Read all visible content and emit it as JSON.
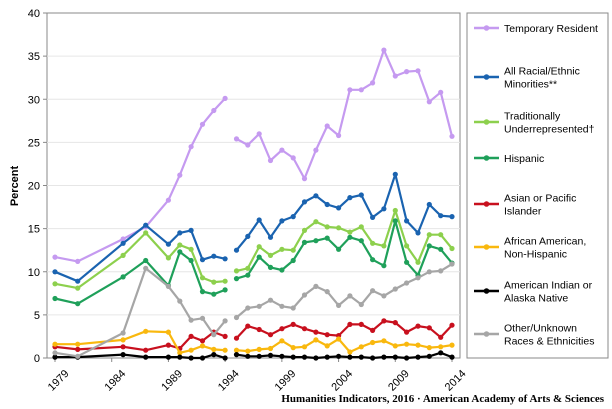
{
  "chart_data": {
    "type": "line",
    "ylabel": "Percent",
    "ylim": [
      0,
      40
    ],
    "xlim": [
      1979,
      2014
    ],
    "yticks": [
      "0",
      "5",
      "10",
      "15",
      "20",
      "25",
      "30",
      "35",
      "40"
    ],
    "xticks": [
      "1979",
      "1984",
      "1989",
      "1994",
      "1999",
      "2004",
      "2009",
      "2014"
    ],
    "source": "Humanities Indicators, 2016 · American Academy of Arts & Sciences",
    "legend_position": "right",
    "series": [
      {
        "name": "Temporary Resident",
        "color": "#c59af0",
        "segments": [
          [
            [
              1979,
              11.7
            ],
            [
              1981,
              11.2
            ],
            [
              1985,
              13.8
            ],
            [
              1987,
              15.2
            ],
            [
              1989,
              18.3
            ],
            [
              1990,
              21.2
            ],
            [
              1991,
              24.5
            ],
            [
              1992,
              27.1
            ],
            [
              1993,
              28.7
            ],
            [
              1994,
              30.1
            ]
          ],
          [
            [
              1995,
              25.4
            ],
            [
              1996,
              24.7
            ],
            [
              1997,
              26.0
            ],
            [
              1998,
              22.9
            ],
            [
              1999,
              24.1
            ],
            [
              2000,
              23.2
            ],
            [
              2001,
              20.8
            ],
            [
              2002,
              24.1
            ],
            [
              2003,
              26.9
            ],
            [
              2004,
              25.8
            ],
            [
              2005,
              31.1
            ],
            [
              2006,
              31.1
            ],
            [
              2007,
              31.9
            ],
            [
              2008,
              35.7
            ],
            [
              2009,
              32.7
            ],
            [
              2010,
              33.2
            ],
            [
              2011,
              33.3
            ],
            [
              2012,
              29.7
            ],
            [
              2013,
              30.8
            ],
            [
              2014,
              25.7
            ]
          ]
        ]
      },
      {
        "name": "All Racial/Ethnic Minorities**",
        "color": "#1a63b0",
        "segments": [
          [
            [
              1979,
              10.0
            ],
            [
              1981,
              8.9
            ],
            [
              1985,
              13.3
            ],
            [
              1987,
              15.4
            ],
            [
              1989,
              13.2
            ],
            [
              1990,
              14.5
            ],
            [
              1991,
              14.8
            ],
            [
              1992,
              11.4
            ],
            [
              1993,
              11.8
            ],
            [
              1994,
              11.5
            ]
          ],
          [
            [
              1995,
              12.5
            ],
            [
              1996,
              14.1
            ],
            [
              1997,
              16.0
            ],
            [
              1998,
              14.0
            ],
            [
              1999,
              15.9
            ],
            [
              2000,
              16.4
            ],
            [
              2001,
              18.1
            ],
            [
              2002,
              18.8
            ],
            [
              2003,
              17.8
            ],
            [
              2004,
              17.4
            ],
            [
              2005,
              18.6
            ],
            [
              2006,
              18.9
            ],
            [
              2007,
              16.3
            ],
            [
              2008,
              17.3
            ],
            [
              2009,
              21.3
            ],
            [
              2010,
              15.9
            ],
            [
              2011,
              14.5
            ],
            [
              2012,
              17.8
            ],
            [
              2013,
              16.5
            ],
            [
              2014,
              16.4
            ]
          ]
        ]
      },
      {
        "name": "Traditionally Underrepresented†",
        "color": "#8dd04d",
        "segments": [
          [
            [
              1979,
              8.6
            ],
            [
              1981,
              8.1
            ],
            [
              1985,
              11.9
            ],
            [
              1987,
              14.5
            ],
            [
              1989,
              11.6
            ],
            [
              1990,
              13.1
            ],
            [
              1991,
              12.6
            ],
            [
              1992,
              9.3
            ],
            [
              1993,
              8.8
            ],
            [
              1994,
              8.9
            ]
          ],
          [
            [
              1995,
              10.1
            ],
            [
              1996,
              10.4
            ],
            [
              1997,
              12.9
            ],
            [
              1998,
              11.9
            ],
            [
              1999,
              12.6
            ],
            [
              2000,
              12.5
            ],
            [
              2001,
              14.8
            ],
            [
              2002,
              15.8
            ],
            [
              2003,
              15.2
            ],
            [
              2004,
              15.1
            ],
            [
              2005,
              14.6
            ],
            [
              2006,
              15.2
            ],
            [
              2007,
              13.3
            ],
            [
              2008,
              13.0
            ],
            [
              2009,
              17.1
            ],
            [
              2010,
              13.0
            ],
            [
              2011,
              11.1
            ],
            [
              2012,
              14.3
            ],
            [
              2013,
              14.3
            ],
            [
              2014,
              12.7
            ]
          ]
        ]
      },
      {
        "name": "Hispanic",
        "color": "#1fa05a",
        "segments": [
          [
            [
              1979,
              6.9
            ],
            [
              1981,
              6.3
            ],
            [
              1985,
              9.4
            ],
            [
              1987,
              11.3
            ],
            [
              1989,
              8.4
            ],
            [
              1990,
              12.3
            ],
            [
              1991,
              11.3
            ],
            [
              1992,
              7.7
            ],
            [
              1993,
              7.4
            ],
            [
              1994,
              7.9
            ]
          ],
          [
            [
              1995,
              9.2
            ],
            [
              1996,
              9.6
            ],
            [
              1997,
              11.7
            ],
            [
              1998,
              10.5
            ],
            [
              1999,
              10.2
            ],
            [
              2000,
              11.3
            ],
            [
              2001,
              13.4
            ],
            [
              2002,
              13.6
            ],
            [
              2003,
              13.9
            ],
            [
              2004,
              12.6
            ],
            [
              2005,
              14.0
            ],
            [
              2006,
              13.6
            ],
            [
              2007,
              11.4
            ],
            [
              2008,
              10.7
            ],
            [
              2009,
              15.9
            ],
            [
              2010,
              11.1
            ],
            [
              2011,
              9.6
            ],
            [
              2012,
              13.0
            ],
            [
              2013,
              12.6
            ],
            [
              2014,
              11.0
            ]
          ]
        ]
      },
      {
        "name": "Asian or Pacific Islander",
        "color": "#c8101e",
        "segments": [
          [
            [
              1979,
              1.3
            ],
            [
              1981,
              1.0
            ],
            [
              1985,
              1.3
            ],
            [
              1987,
              0.9
            ],
            [
              1989,
              1.5
            ],
            [
              1990,
              1.1
            ],
            [
              1991,
              2.5
            ],
            [
              1992,
              2.0
            ],
            [
              1993,
              3.0
            ],
            [
              1994,
              2.5
            ]
          ],
          [
            [
              1995,
              2.3
            ],
            [
              1996,
              3.7
            ],
            [
              1997,
              3.3
            ],
            [
              1998,
              2.7
            ],
            [
              1999,
              3.4
            ],
            [
              2000,
              3.9
            ],
            [
              2001,
              3.4
            ],
            [
              2002,
              3.0
            ],
            [
              2003,
              2.7
            ],
            [
              2004,
              2.6
            ],
            [
              2005,
              3.9
            ],
            [
              2006,
              3.9
            ],
            [
              2007,
              3.2
            ],
            [
              2008,
              4.3
            ],
            [
              2009,
              4.1
            ],
            [
              2010,
              3.0
            ],
            [
              2011,
              3.7
            ],
            [
              2012,
              3.5
            ],
            [
              2013,
              2.4
            ],
            [
              2014,
              3.8
            ]
          ]
        ]
      },
      {
        "name": "African American, Non-Hispanic",
        "color": "#f9b80e",
        "segments": [
          [
            [
              1979,
              1.6
            ],
            [
              1981,
              1.6
            ],
            [
              1985,
              2.1
            ],
            [
              1987,
              3.1
            ],
            [
              1989,
              3.0
            ],
            [
              1990,
              0.6
            ],
            [
              1991,
              0.9
            ],
            [
              1992,
              1.4
            ],
            [
              1993,
              1.0
            ],
            [
              1994,
              0.9
            ]
          ],
          [
            [
              1995,
              0.9
            ],
            [
              1996,
              0.8
            ],
            [
              1997,
              1.0
            ],
            [
              1998,
              1.1
            ],
            [
              1999,
              2.0
            ],
            [
              2000,
              1.2
            ],
            [
              2001,
              1.3
            ],
            [
              2002,
              2.1
            ],
            [
              2003,
              1.4
            ],
            [
              2004,
              2.2
            ],
            [
              2005,
              0.7
            ],
            [
              2006,
              1.3
            ],
            [
              2007,
              1.8
            ],
            [
              2008,
              2.0
            ],
            [
              2009,
              1.4
            ],
            [
              2010,
              1.6
            ],
            [
              2011,
              1.5
            ],
            [
              2012,
              1.2
            ],
            [
              2013,
              1.3
            ],
            [
              2014,
              1.5
            ]
          ]
        ]
      },
      {
        "name": "American Indian or Alaska Native",
        "color": "#000000",
        "segments": [
          [
            [
              1979,
              0.1
            ],
            [
              1981,
              0.1
            ],
            [
              1985,
              0.4
            ],
            [
              1987,
              0.1
            ],
            [
              1989,
              0.1
            ],
            [
              1990,
              0.1
            ],
            [
              1991,
              0.0
            ],
            [
              1992,
              0.0
            ],
            [
              1993,
              0.4
            ],
            [
              1994,
              0.0
            ]
          ],
          [
            [
              1995,
              0.4
            ],
            [
              1996,
              0.2
            ],
            [
              1997,
              0.2
            ],
            [
              1998,
              0.3
            ],
            [
              1999,
              0.2
            ],
            [
              2000,
              0.1
            ],
            [
              2001,
              0.1
            ],
            [
              2002,
              0.0
            ],
            [
              2003,
              0.1
            ],
            [
              2004,
              0.2
            ],
            [
              2005,
              0.1
            ],
            [
              2006,
              0.1
            ],
            [
              2007,
              0.0
            ],
            [
              2008,
              0.1
            ],
            [
              2009,
              0.1
            ],
            [
              2010,
              0.0
            ],
            [
              2011,
              0.1
            ],
            [
              2012,
              0.2
            ],
            [
              2013,
              0.6
            ],
            [
              2014,
              0.1
            ]
          ]
        ]
      },
      {
        "name": "Other/Unknown Races & Ethnicities",
        "color": "#a6a6a6",
        "segments": [
          [
            [
              1979,
              0.6
            ],
            [
              1981,
              0.2
            ],
            [
              1985,
              2.9
            ],
            [
              1987,
              10.4
            ],
            [
              1989,
              8.3
            ],
            [
              1990,
              6.6
            ],
            [
              1991,
              4.4
            ],
            [
              1992,
              4.6
            ],
            [
              1993,
              2.7
            ],
            [
              1994,
              4.3
            ]
          ],
          [
            [
              1995,
              4.7
            ],
            [
              1996,
              5.8
            ],
            [
              1997,
              6.0
            ],
            [
              1998,
              6.7
            ],
            [
              1999,
              6.0
            ],
            [
              2000,
              5.8
            ],
            [
              2001,
              7.3
            ],
            [
              2002,
              8.3
            ],
            [
              2003,
              7.7
            ],
            [
              2004,
              6.1
            ],
            [
              2005,
              7.2
            ],
            [
              2006,
              6.2
            ],
            [
              2007,
              7.8
            ],
            [
              2008,
              7.2
            ],
            [
              2009,
              8.0
            ],
            [
              2010,
              8.7
            ],
            [
              2011,
              9.3
            ],
            [
              2012,
              10.0
            ],
            [
              2013,
              10.1
            ],
            [
              2014,
              10.9
            ]
          ]
        ]
      }
    ]
  }
}
